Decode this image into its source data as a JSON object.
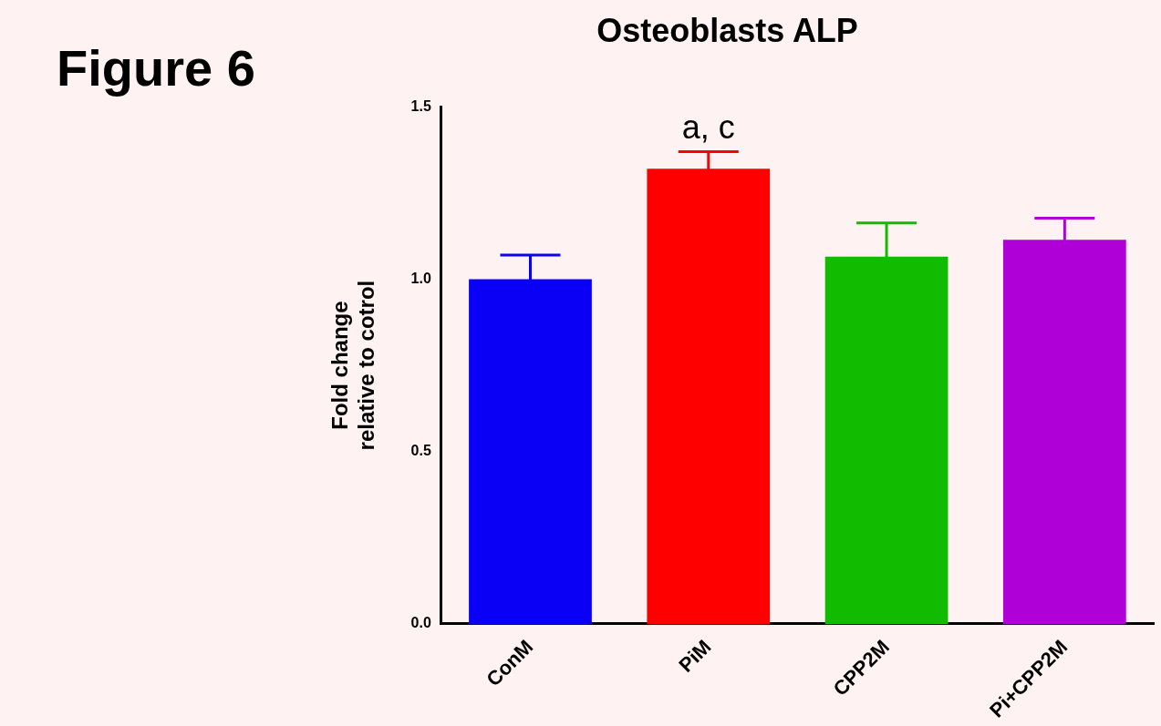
{
  "chart_data": {
    "type": "bar",
    "title": "Osteoblasts ALP",
    "ylabel": "Fold change\nrelative to cotrol",
    "categories": [
      "ConM",
      "PiM",
      "CPP2M",
      "Pi+CPP2M"
    ],
    "values": [
      1.0,
      1.32,
      1.065,
      1.114
    ],
    "colors": [
      "#0a00f5",
      "#ff0000",
      "#10bb00",
      "#b000d8"
    ],
    "errors": [
      0.07,
      0.05,
      0.098,
      0.063
    ],
    "ylim": [
      0,
      1.5
    ],
    "yticks": [
      {
        "value": 0,
        "label": "0.0"
      },
      {
        "value": 0.5,
        "label": "0.5"
      },
      {
        "value": 1,
        "label": "1.0"
      },
      {
        "value": 1.5,
        "label": "1.5"
      }
    ],
    "grid": false,
    "legend": false,
    "annotations": [
      "Figure 6",
      {
        "text": "a, c",
        "x": "PiM",
        "y": 1.37
      }
    ]
  }
}
